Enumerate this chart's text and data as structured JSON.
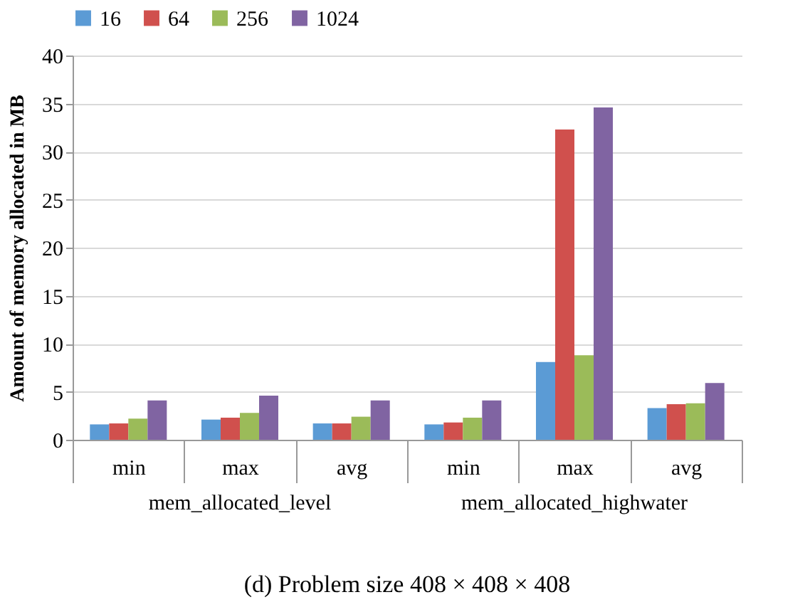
{
  "chart_data": {
    "type": "bar",
    "title": "(d) Problem size 408 × 408 × 408",
    "ylabel": "Amount of memory allocated in MB",
    "categories": [
      "min",
      "max",
      "avg",
      "min",
      "max",
      "avg"
    ],
    "series": [
      {
        "name": "16",
        "color": "#5b9bd5",
        "values": [
          1.6,
          2.1,
          1.7,
          1.6,
          8.1,
          3.3
        ]
      },
      {
        "name": "64",
        "color": "#d0504d",
        "values": [
          1.7,
          2.3,
          1.7,
          1.8,
          32.3,
          3.7
        ]
      },
      {
        "name": "256",
        "color": "#9bbb59",
        "values": [
          2.2,
          2.8,
          2.4,
          2.3,
          8.8,
          3.8
        ]
      },
      {
        "name": "1024",
        "color": "#8064a2",
        "values": [
          4.1,
          4.6,
          4.1,
          4.1,
          34.6,
          5.9
        ]
      }
    ],
    "annotations": [
      "mem_allocated_level",
      "mem_allocated_highwater"
    ],
    "ylim": [
      0,
      40
    ],
    "yticks": [
      0,
      5,
      10,
      15,
      20,
      25,
      30,
      35,
      40
    ],
    "grid": "y",
    "legend": "top"
  }
}
